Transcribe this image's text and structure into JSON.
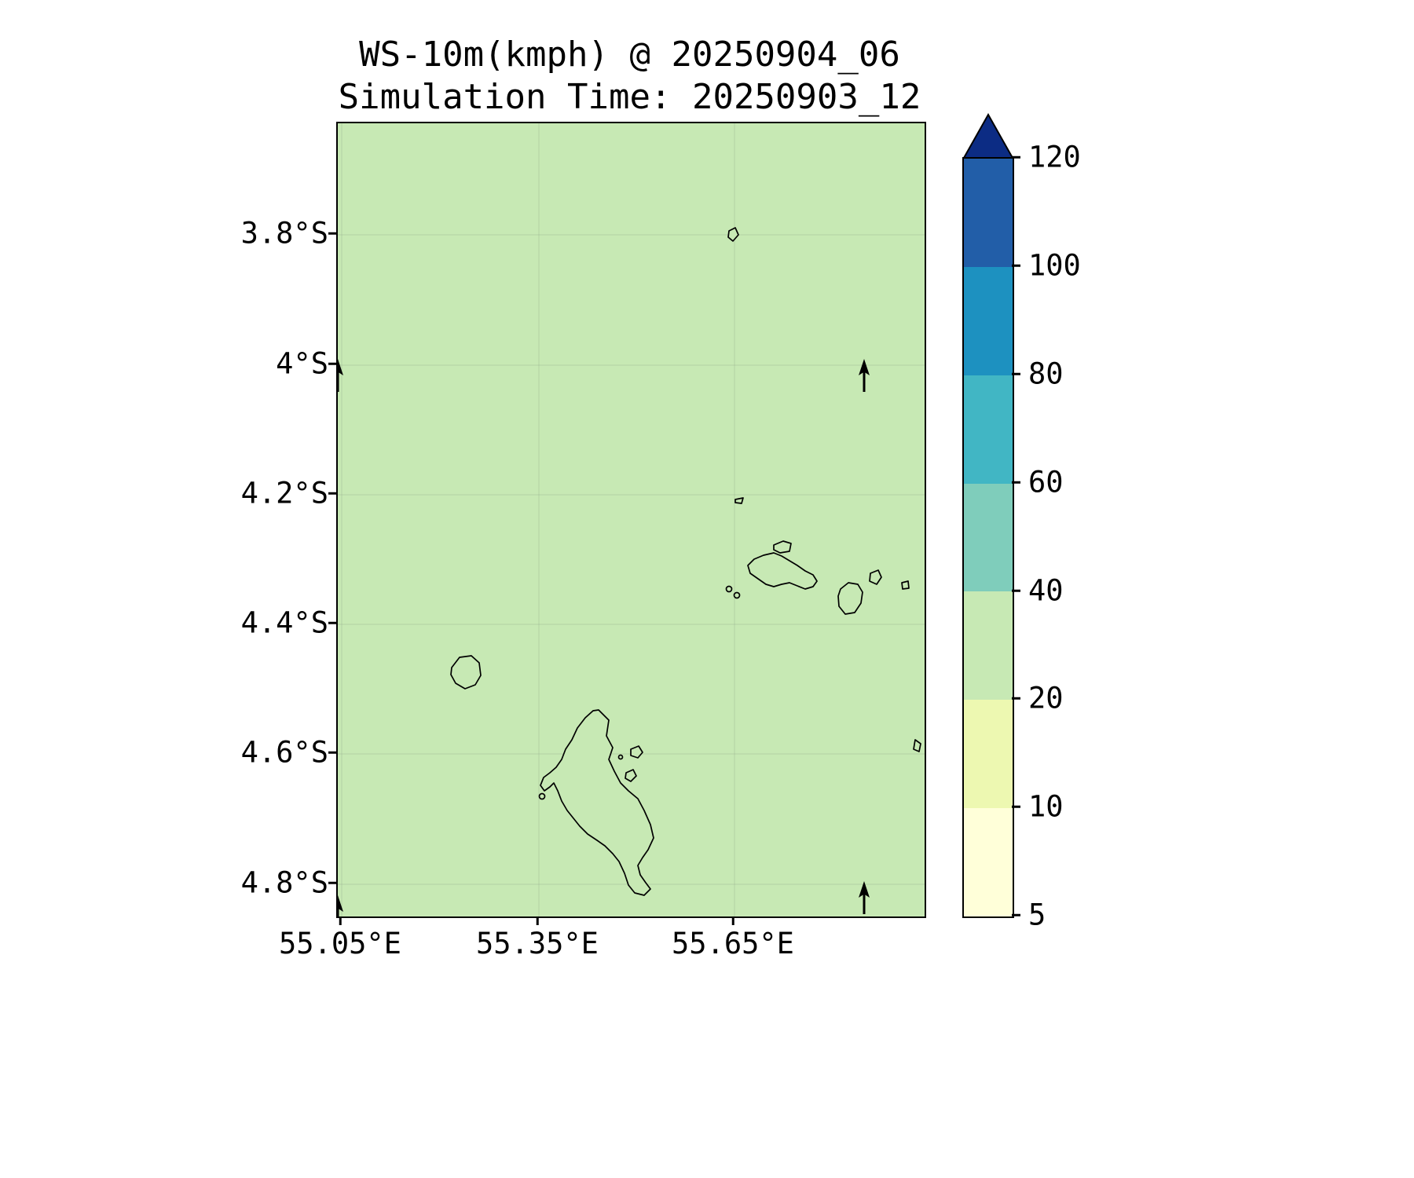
{
  "title": {
    "line1": "WS-10m(kmph) @ 20250904_06",
    "line2": "Simulation Time: 20250903_12"
  },
  "axes": {
    "y_ticks": [
      "3.8°S",
      "4°S",
      "4.2°S",
      "4.4°S",
      "4.6°S",
      "4.8°S"
    ],
    "x_ticks": [
      "55.05°E",
      "55.35°E",
      "55.65°E"
    ]
  },
  "colorbar": {
    "tick_labels": [
      "120",
      "100",
      "80",
      "60",
      "40",
      "20",
      "10",
      "5"
    ],
    "levels": [
      5,
      10,
      20,
      40,
      60,
      80,
      100,
      120
    ],
    "segments": [
      "#ffffd9",
      "#edf8b1",
      "#c7e9b4",
      "#7fcdbb",
      "#41b6c4",
      "#1d91c0",
      "#225ea8"
    ],
    "extend_color": "#0c2c84"
  },
  "map": {
    "fill_color": "#c7e9b4",
    "coastline_color": "#000000"
  },
  "chart_data": {
    "type": "heatmap",
    "title": "WS-10m(kmph) @ 20250904_06",
    "subtitle": "Simulation Time: 20250903_12",
    "variable": "WS-10m",
    "units": "kmph",
    "valid_time": "20250904_06",
    "simulation_time": "20250903_12",
    "x": {
      "label": "longitude",
      "tick_labels": [
        "55.05°E",
        "55.35°E",
        "55.65°E"
      ],
      "range_deg_east": [
        55.05,
        55.94
      ]
    },
    "y": {
      "label": "latitude",
      "tick_labels": [
        "3.8°S",
        "4°S",
        "4.2°S",
        "4.4°S",
        "4.6°S",
        "4.8°S"
      ],
      "range_deg_south": [
        3.63,
        4.85
      ]
    },
    "colorbar_levels": [
      5,
      10,
      20,
      40,
      60,
      80,
      100,
      120
    ],
    "colorbar_extend": "max",
    "colormap_colors": [
      "#ffffd9",
      "#edf8b1",
      "#c7e9b4",
      "#7fcdbb",
      "#41b6c4",
      "#1d91c0",
      "#225ea8",
      "#0c2c84"
    ],
    "field_summary": "Wind speed is uniform across the whole domain, falling in the 20-40 kmph color band (light green).",
    "overlays": [
      "Seychelles island coastlines drawn in black (Mahe, Silhouette, Praslin, La Digue, Denis and nearby islets)",
      "Sparse black wind arrows pointing north (upward)"
    ],
    "grid": true,
    "legend_position": "right colorbar"
  }
}
